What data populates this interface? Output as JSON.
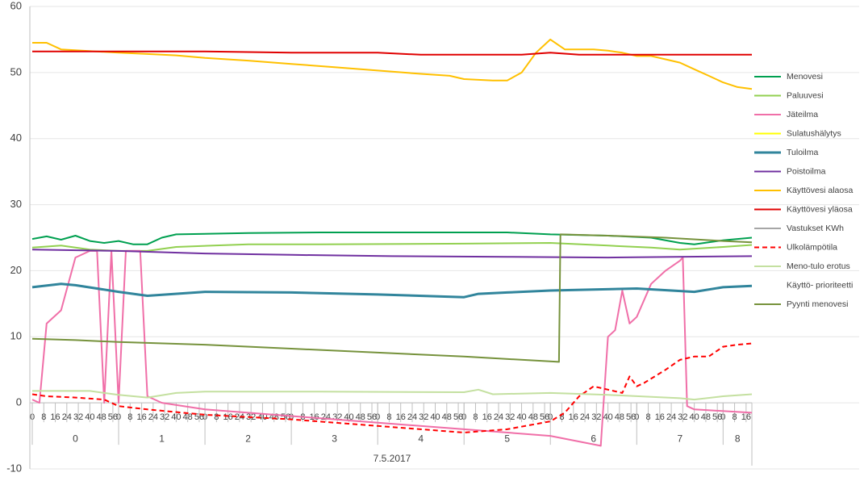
{
  "chart_data": {
    "type": "line",
    "x_title": "7.5.2017",
    "xlim": [
      0,
      500
    ],
    "ylim": [
      -10,
      60
    ],
    "yticks": [
      -10,
      0,
      10,
      20,
      30,
      40,
      50,
      60
    ],
    "grid": true,
    "legend": "right",
    "x_groups": [
      {
        "label": "0",
        "range": [
          0,
          60
        ]
      },
      {
        "label": "1",
        "range": [
          60,
          120
        ]
      },
      {
        "label": "2",
        "range": [
          120,
          180
        ]
      },
      {
        "label": "3",
        "range": [
          180,
          240
        ]
      },
      {
        "label": "4",
        "range": [
          240,
          300
        ]
      },
      {
        "label": "5",
        "range": [
          300,
          360
        ]
      },
      {
        "label": "6",
        "range": [
          360,
          420
        ]
      },
      {
        "label": "7",
        "range": [
          420,
          480
        ]
      },
      {
        "label": "8",
        "range": [
          480,
          500
        ]
      }
    ],
    "xticks": [
      {
        "value": 0,
        "label": "0"
      },
      {
        "value": 8,
        "label": "8"
      },
      {
        "value": 16,
        "label": "16"
      },
      {
        "value": 24,
        "label": "24"
      },
      {
        "value": 32,
        "label": "32"
      },
      {
        "value": 40,
        "label": "40"
      },
      {
        "value": 48,
        "label": "48"
      },
      {
        "value": 56,
        "label": "56"
      },
      {
        "value": 60,
        "label": "0"
      },
      {
        "value": 68,
        "label": "8"
      },
      {
        "value": 76,
        "label": "16"
      },
      {
        "value": 84,
        "label": "24"
      },
      {
        "value": 92,
        "label": "32"
      },
      {
        "value": 100,
        "label": "40"
      },
      {
        "value": 108,
        "label": "48"
      },
      {
        "value": 116,
        "label": "56"
      },
      {
        "value": 120,
        "label": "0"
      },
      {
        "value": 128,
        "label": "8"
      },
      {
        "value": 136,
        "label": "16"
      },
      {
        "value": 144,
        "label": "24"
      },
      {
        "value": 152,
        "label": "32"
      },
      {
        "value": 160,
        "label": "40"
      },
      {
        "value": 168,
        "label": "48"
      },
      {
        "value": 176,
        "label": "56"
      },
      {
        "value": 180,
        "label": "0"
      },
      {
        "value": 188,
        "label": "8"
      },
      {
        "value": 196,
        "label": "16"
      },
      {
        "value": 204,
        "label": "24"
      },
      {
        "value": 212,
        "label": "32"
      },
      {
        "value": 220,
        "label": "40"
      },
      {
        "value": 228,
        "label": "48"
      },
      {
        "value": 236,
        "label": "56"
      },
      {
        "value": 240,
        "label": "0"
      },
      {
        "value": 248,
        "label": "8"
      },
      {
        "value": 256,
        "label": "16"
      },
      {
        "value": 264,
        "label": "24"
      },
      {
        "value": 272,
        "label": "32"
      },
      {
        "value": 280,
        "label": "40"
      },
      {
        "value": 288,
        "label": "48"
      },
      {
        "value": 296,
        "label": "56"
      },
      {
        "value": 300,
        "label": "0"
      },
      {
        "value": 308,
        "label": "8"
      },
      {
        "value": 316,
        "label": "16"
      },
      {
        "value": 324,
        "label": "24"
      },
      {
        "value": 332,
        "label": "32"
      },
      {
        "value": 340,
        "label": "40"
      },
      {
        "value": 348,
        "label": "48"
      },
      {
        "value": 356,
        "label": "56"
      },
      {
        "value": 360,
        "label": "0"
      },
      {
        "value": 368,
        "label": "8"
      },
      {
        "value": 376,
        "label": "16"
      },
      {
        "value": 384,
        "label": "24"
      },
      {
        "value": 392,
        "label": "32"
      },
      {
        "value": 400,
        "label": "40"
      },
      {
        "value": 408,
        "label": "48"
      },
      {
        "value": 416,
        "label": "56"
      },
      {
        "value": 420,
        "label": "0"
      },
      {
        "value": 428,
        "label": "8"
      },
      {
        "value": 436,
        "label": "16"
      },
      {
        "value": 444,
        "label": "24"
      },
      {
        "value": 452,
        "label": "32"
      },
      {
        "value": 460,
        "label": "40"
      },
      {
        "value": 468,
        "label": "48"
      },
      {
        "value": 476,
        "label": "56"
      },
      {
        "value": 480,
        "label": "0"
      },
      {
        "value": 488,
        "label": "8"
      },
      {
        "value": 496,
        "label": "16"
      }
    ],
    "series": [
      {
        "name": "Menovesi",
        "color": "#00a050",
        "width": 2,
        "x": [
          0,
          10,
          20,
          30,
          40,
          50,
          60,
          70,
          80,
          90,
          100,
          150,
          200,
          250,
          300,
          330,
          360,
          400,
          430,
          450,
          460,
          480,
          500
        ],
        "values": [
          24.8,
          25.2,
          24.7,
          25.3,
          24.5,
          24.2,
          24.5,
          24,
          24,
          25,
          25.5,
          25.7,
          25.8,
          25.8,
          25.8,
          25.8,
          25.5,
          25.3,
          25,
          24.2,
          24,
          24.6,
          25
        ]
      },
      {
        "name": "Paluuvesi",
        "color": "#92d050",
        "width": 2,
        "x": [
          0,
          20,
          40,
          60,
          80,
          100,
          150,
          200,
          300,
          360,
          400,
          430,
          450,
          480,
          500
        ],
        "values": [
          23.5,
          23.8,
          23.2,
          23,
          23,
          23.6,
          24,
          24,
          24.1,
          24.2,
          23.8,
          23.5,
          23.2,
          23.6,
          23.9
        ]
      },
      {
        "name": "Jäteilma",
        "color": "#f06fa8",
        "width": 2,
        "x": [
          0,
          5,
          10,
          20,
          30,
          40,
          45,
          50,
          55,
          60,
          65,
          75,
          80,
          90,
          120,
          180,
          240,
          300,
          360,
          395,
          400,
          405,
          410,
          415,
          420,
          430,
          440,
          450,
          452,
          455,
          460,
          500
        ],
        "values": [
          0.5,
          0,
          12,
          14,
          22,
          23,
          23,
          0,
          23,
          0,
          23,
          23,
          1,
          0,
          -1,
          -2,
          -3,
          -4,
          -5,
          -6.5,
          10,
          11,
          17,
          12,
          13,
          18,
          20,
          21.5,
          22,
          -0.5,
          -1,
          -1.5
        ]
      },
      {
        "name": "Sulatushälytys",
        "color": "#ffff00",
        "width": 2,
        "x": [],
        "values": []
      },
      {
        "name": "Tuloilma",
        "color": "#31859c",
        "width": 3,
        "x": [
          0,
          20,
          30,
          60,
          80,
          120,
          180,
          240,
          300,
          310,
          330,
          360,
          420,
          460,
          480,
          500
        ],
        "values": [
          17.5,
          18,
          17.8,
          16.8,
          16.2,
          16.8,
          16.7,
          16.4,
          16,
          16.5,
          16.7,
          17,
          17.3,
          16.8,
          17.5,
          17.7
        ]
      },
      {
        "name": "Poistoilma",
        "color": "#7030a0",
        "width": 2,
        "x": [
          0,
          60,
          120,
          180,
          250,
          330,
          400,
          500
        ],
        "values": [
          23.2,
          23,
          22.6,
          22.4,
          22.2,
          22.1,
          22,
          22.2
        ]
      },
      {
        "name": "Käyttövesi alaosa",
        "color": "#ffc000",
        "width": 2,
        "x": [
          0,
          10,
          20,
          60,
          80,
          100,
          120,
          150,
          180,
          210,
          240,
          270,
          290,
          300,
          320,
          330,
          340,
          350,
          360,
          370,
          380,
          390,
          400,
          410,
          420,
          430,
          440,
          450,
          460,
          470,
          480,
          490,
          500
        ],
        "values": [
          54.5,
          54.5,
          53.5,
          53,
          52.8,
          52.6,
          52.2,
          51.8,
          51.3,
          50.8,
          50.3,
          49.8,
          49.5,
          49,
          48.8,
          48.8,
          50,
          53,
          55,
          53.5,
          53.5,
          53.5,
          53.3,
          53,
          52.5,
          52.5,
          52,
          51.5,
          50.5,
          49.5,
          48.5,
          47.8,
          47.5
        ]
      },
      {
        "name": "Käyttövesi yläosa",
        "color": "#e00000",
        "width": 2,
        "x": [
          0,
          120,
          180,
          240,
          270,
          340,
          360,
          380,
          500
        ],
        "values": [
          53.2,
          53.2,
          53,
          53,
          52.7,
          52.7,
          53,
          52.7,
          52.7
        ]
      },
      {
        "name": "Vastukset KWh",
        "color": "#a6a6a6",
        "width": 2,
        "x": [],
        "values": []
      },
      {
        "name": "Ulkolämpötila",
        "color": "#ff0000",
        "width": 2,
        "dashed": true,
        "x": [
          0,
          10,
          30,
          50,
          60,
          80,
          120,
          180,
          240,
          300,
          330,
          360,
          370,
          380,
          390,
          400,
          410,
          415,
          420,
          425,
          440,
          450,
          460,
          470,
          480,
          490,
          500
        ],
        "values": [
          1.3,
          1,
          0.8,
          0.5,
          -0.5,
          -1,
          -1.8,
          -2.5,
          -3.5,
          -4.5,
          -4,
          -2.8,
          -1.5,
          1,
          2.5,
          2,
          1.5,
          4,
          2.5,
          3,
          5,
          6.5,
          7,
          7,
          8.5,
          8.8,
          9
        ]
      },
      {
        "name": "Meno-tulo erotus",
        "color": "#c4e0a0",
        "width": 2,
        "x": [
          0,
          40,
          50,
          60,
          80,
          100,
          120,
          200,
          300,
          310,
          320,
          360,
          400,
          450,
          460,
          480,
          500
        ],
        "values": [
          1.8,
          1.8,
          1.5,
          1.2,
          0.8,
          1.5,
          1.7,
          1.7,
          1.6,
          2,
          1.3,
          1.5,
          1.2,
          0.7,
          0.5,
          1,
          1.3
        ]
      },
      {
        "name": "Käyttö- prioriteetti",
        "color": "#ffffff",
        "width": 2,
        "x": [],
        "values": []
      },
      {
        "name": "Pyynti menovesi",
        "color": "#76923c",
        "width": 2,
        "x": [
          0,
          30,
          60,
          120,
          180,
          240,
          300,
          366,
          367,
          400,
          440,
          480,
          500
        ],
        "values": [
          9.7,
          9.5,
          9.2,
          8.8,
          8.2,
          7.6,
          7,
          6.2,
          25.5,
          25.3,
          25,
          24.5,
          24.3
        ]
      }
    ]
  }
}
